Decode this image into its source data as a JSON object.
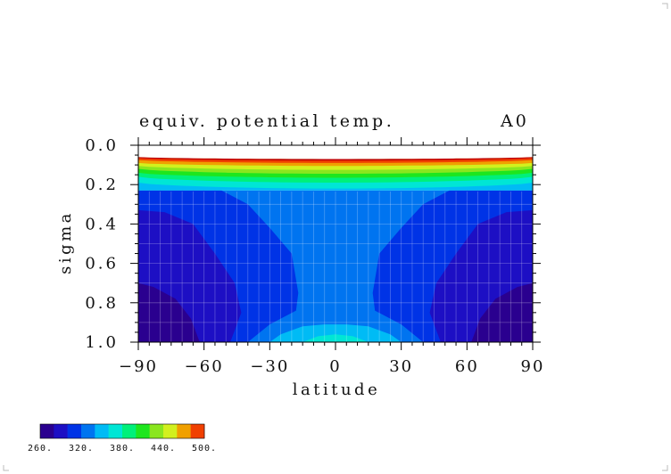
{
  "chart_data": {
    "type": "heatmap",
    "title": "equiv. potential temp.",
    "title_right": "A0",
    "xlabel": "latitude",
    "ylabel": "sigma",
    "xlim": [
      -90,
      90
    ],
    "ylim": [
      1.0,
      0.0
    ],
    "x_ticks": [
      -90,
      -60,
      -30,
      0,
      30,
      60,
      90
    ],
    "x_tick_labels": [
      "−90",
      "−60",
      "−30",
      "0",
      "30",
      "60",
      "90"
    ],
    "y_ticks": [
      0.0,
      0.2,
      0.4,
      0.6,
      0.8,
      1.0
    ],
    "y_tick_labels": [
      "0.0",
      "0.2",
      "0.4",
      "0.6",
      "0.8",
      "1.0"
    ],
    "grid": true,
    "colorbar": {
      "levels": [
        260,
        280,
        300,
        320,
        340,
        360,
        380,
        400,
        420,
        440,
        460,
        480,
        500
      ],
      "labels": [
        "260.",
        "320.",
        "380.",
        "440.",
        "500."
      ],
      "label_values": [
        260,
        320,
        380,
        440,
        500
      ],
      "colors": [
        "#2a008f",
        "#1d0fc4",
        "#0033e6",
        "#0074f0",
        "#00bbf5",
        "#00e6d5",
        "#00f07a",
        "#1ee61e",
        "#8ae61e",
        "#d2f01e",
        "#f0a000",
        "#f04000"
      ]
    },
    "regions": [
      {
        "name": "lowest-level-field",
        "value": 330,
        "color": "#0074f0",
        "poly": [
          [
            -90,
            1.0
          ],
          [
            -90,
            0.23
          ],
          [
            90,
            0.23
          ],
          [
            90,
            1.0
          ]
        ]
      },
      {
        "name": "mid-cold-left",
        "value": 310,
        "color": "#0033e6",
        "poly": [
          [
            -90,
            1.0
          ],
          [
            -90,
            0.23
          ],
          [
            -52,
            0.23
          ],
          [
            -40,
            0.3
          ],
          [
            -30,
            0.42
          ],
          [
            -20,
            0.55
          ],
          [
            -17,
            0.75
          ],
          [
            -18,
            0.84
          ],
          [
            -30,
            0.91
          ],
          [
            -40,
            1.0
          ]
        ]
      },
      {
        "name": "mid-cold-right",
        "value": 310,
        "color": "#0033e6",
        "poly": [
          [
            90,
            1.0
          ],
          [
            90,
            0.23
          ],
          [
            52,
            0.23
          ],
          [
            40,
            0.3
          ],
          [
            30,
            0.42
          ],
          [
            20,
            0.55
          ],
          [
            17,
            0.75
          ],
          [
            18,
            0.84
          ],
          [
            30,
            0.91
          ],
          [
            40,
            1.0
          ]
        ]
      },
      {
        "name": "cold-left",
        "value": 290,
        "color": "#1d0fc4",
        "poly": [
          [
            -90,
            1.0
          ],
          [
            -90,
            0.33
          ],
          [
            -78,
            0.34
          ],
          [
            -65,
            0.4
          ],
          [
            -55,
            0.55
          ],
          [
            -46,
            0.7
          ],
          [
            -43,
            0.85
          ],
          [
            -48,
            1.0
          ]
        ]
      },
      {
        "name": "cold-right",
        "value": 290,
        "color": "#1d0fc4",
        "poly": [
          [
            90,
            1.0
          ],
          [
            90,
            0.33
          ],
          [
            78,
            0.34
          ],
          [
            65,
            0.4
          ],
          [
            55,
            0.55
          ],
          [
            46,
            0.7
          ],
          [
            43,
            0.85
          ],
          [
            48,
            1.0
          ]
        ]
      },
      {
        "name": "coldest-left",
        "value": 270,
        "color": "#2a008f",
        "poly": [
          [
            -90,
            1.0
          ],
          [
            -90,
            0.7
          ],
          [
            -83,
            0.72
          ],
          [
            -73,
            0.78
          ],
          [
            -66,
            0.88
          ],
          [
            -62,
            1.0
          ]
        ]
      },
      {
        "name": "coldest-right",
        "value": 270,
        "color": "#2a008f",
        "poly": [
          [
            90,
            1.0
          ],
          [
            90,
            0.7
          ],
          [
            83,
            0.72
          ],
          [
            73,
            0.78
          ],
          [
            66,
            0.88
          ],
          [
            62,
            1.0
          ]
        ]
      },
      {
        "name": "warm-surface",
        "value": 350,
        "color": "#00bbf5",
        "poly": [
          [
            -30,
            1.0
          ],
          [
            -25,
            0.96
          ],
          [
            -15,
            0.92
          ],
          [
            -5,
            0.91
          ],
          [
            5,
            0.91
          ],
          [
            15,
            0.92
          ],
          [
            25,
            0.96
          ],
          [
            30,
            1.0
          ]
        ]
      },
      {
        "name": "warmest-surface",
        "value": 370,
        "color": "#00e6d5",
        "poly": [
          [
            -15,
            1.0
          ],
          [
            -8,
            0.97
          ],
          [
            0,
            0.96
          ],
          [
            8,
            0.97
          ],
          [
            15,
            1.0
          ]
        ]
      }
    ],
    "upper_bands": [
      {
        "value": 350,
        "color": "#00bbf5",
        "sigma_edge": 0.23,
        "sigma_center": 0.23
      },
      {
        "value": 370,
        "color": "#00e6d5",
        "sigma_edge": 0.19,
        "sigma_center": 0.22
      },
      {
        "value": 390,
        "color": "#00f07a",
        "sigma_edge": 0.16,
        "sigma_center": 0.19
      },
      {
        "value": 410,
        "color": "#1ee61e",
        "sigma_edge": 0.14,
        "sigma_center": 0.165
      },
      {
        "value": 430,
        "color": "#8ae61e",
        "sigma_edge": 0.12,
        "sigma_center": 0.145
      },
      {
        "value": 450,
        "color": "#d2f01e",
        "sigma_edge": 0.105,
        "sigma_center": 0.125
      },
      {
        "value": 470,
        "color": "#f0a000",
        "sigma_edge": 0.09,
        "sigma_center": 0.105
      },
      {
        "value": 490,
        "color": "#f04000",
        "sigma_edge": 0.075,
        "sigma_center": 0.09
      },
      {
        "value": 500,
        "color": "#c00000",
        "sigma_edge": 0.065,
        "sigma_center": 0.078
      }
    ],
    "top_boundary_sigma_edge": 0.06,
    "top_boundary_sigma_center": 0.07
  }
}
